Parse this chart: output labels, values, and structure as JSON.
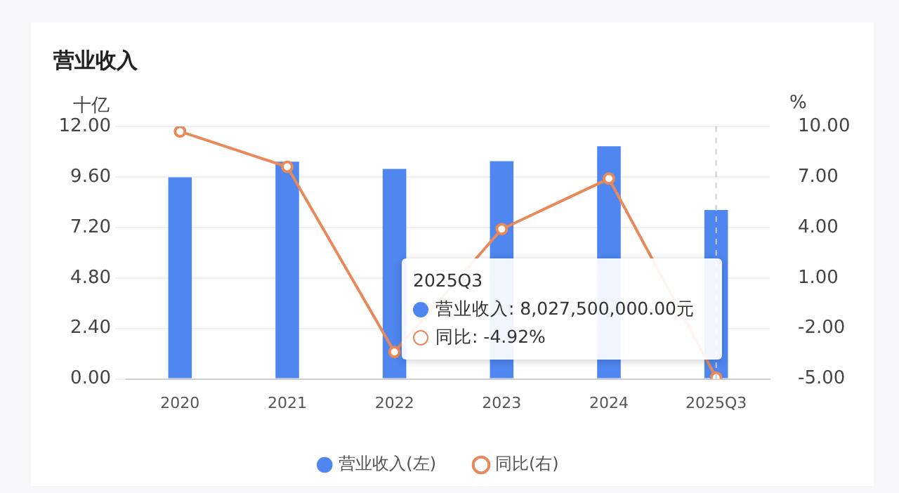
{
  "chart_data": {
    "type": "bar",
    "title": "营业收入",
    "ylabel": "十亿",
    "y2label": "%",
    "categories": [
      "2020",
      "2021",
      "2022",
      "2023",
      "2024",
      "2025Q3"
    ],
    "series": [
      {
        "name": "营业收入(左)",
        "color": "#4f86f0",
        "values": [
          9.58,
          10.32,
          9.98,
          10.35,
          11.06,
          8.03
        ]
      },
      {
        "name": "同比(右)",
        "type": "line",
        "axis": "y2",
        "color": "#e8895a",
        "values": [
          9.7,
          7.6,
          -3.4,
          3.9,
          6.9,
          -4.92
        ]
      }
    ],
    "ylim": [
      0,
      12
    ],
    "yticks": [
      {
        "value": 0,
        "label": "0.00"
      },
      {
        "value": 2.4,
        "label": "2.40"
      },
      {
        "value": 4.8,
        "label": "4.80"
      },
      {
        "value": 7.2,
        "label": "7.20"
      },
      {
        "value": 9.6,
        "label": "9.60"
      },
      {
        "value": 12,
        "label": "12.00"
      }
    ],
    "y2lim": [
      -5,
      10
    ],
    "y2ticks": [
      {
        "value": -5,
        "label": "-5.00"
      },
      {
        "value": -2,
        "label": "-2.00"
      },
      {
        "value": 1,
        "label": "1.00"
      },
      {
        "value": 4,
        "label": "4.00"
      },
      {
        "value": 7,
        "label": "7.00"
      },
      {
        "value": 10,
        "label": "10.00"
      }
    ],
    "ref_lines": [
      {
        "axis": "x",
        "value": "2025Q3",
        "color": "#cccccc",
        "line_style": "dashed"
      }
    ],
    "annotations": [
      "2025Q3",
      "营业收入: 8,027,500,000.00元",
      "同比: -4.92%"
    ],
    "grid": "y",
    "legend": "bottom",
    "marker": "circle"
  }
}
